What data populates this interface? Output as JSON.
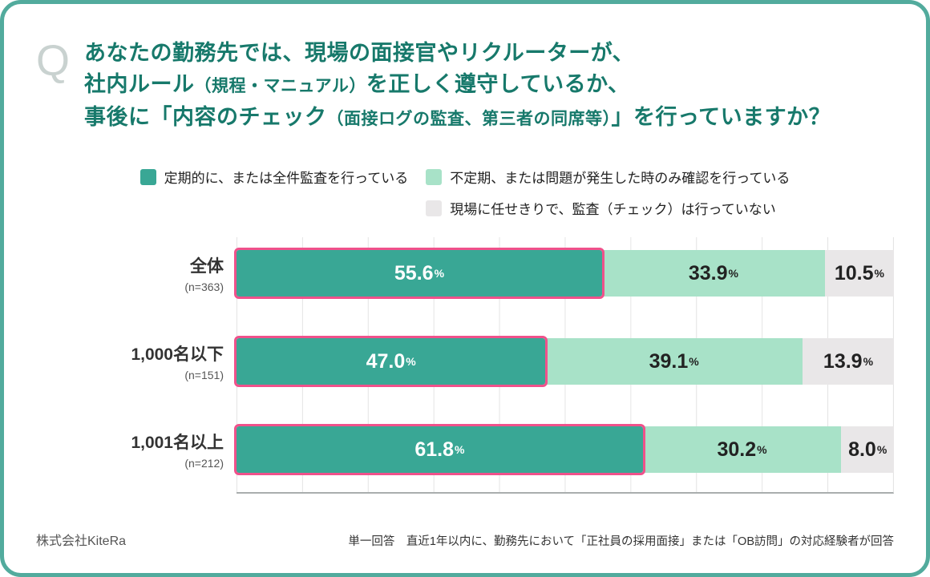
{
  "colors": {
    "frame": "#52ab9d",
    "card_bg": "#ffffff",
    "title_text": "#17796b",
    "q_icon": "#c9d2d0",
    "series1": "#39a795",
    "series2": "#a8e2c8",
    "series3": "#e9e7e8",
    "highlight_border": "#f0518b",
    "gridline": "#e4e4e4",
    "axis_line": "#a9aeae"
  },
  "question": {
    "icon": "Q",
    "lines": [
      [
        {
          "t": "あなたの勤務先では、現場の面接官やリクルーターが、"
        }
      ],
      [
        {
          "t": "社内ルール"
        },
        {
          "t": "（規程・マニュアル）",
          "small": true
        },
        {
          "t": "を正しく遵守しているか、"
        }
      ],
      [
        {
          "t": "事後に「内容のチェック"
        },
        {
          "t": "（面接ログの監査、第三者の同席等）",
          "small": true
        },
        {
          "t": "」を行っていますか？"
        }
      ]
    ]
  },
  "legend": [
    {
      "label": "定期的に、または全件監査を行っている",
      "color": "#39a795"
    },
    {
      "label": "不定期、または問題が発生した時のみ確認を行っている",
      "color": "#a8e2c8"
    },
    {
      "label": "現場に任せきりで、監査（チェック）は行っていない",
      "color": "#e9e7e8"
    }
  ],
  "chart_data": {
    "type": "bar",
    "orientation": "horizontal",
    "stacked": true,
    "title": "あなたの勤務先では、現場の面接官やリクルーターが、社内ルール（規程・マニュアル）を正しく遵守しているか、事後に「内容のチェック（面接ログの監査、第三者の同席等）」を行っていますか？",
    "categories": [
      "全体",
      "1,000名以下",
      "1,001名以上"
    ],
    "category_sub": [
      "(n=363)",
      "(n=151)",
      "(n=212)"
    ],
    "series": [
      {
        "name": "定期的に、または全件監査を行っている",
        "values": [
          55.6,
          47.0,
          61.8
        ],
        "color": "#39a795",
        "highlighted": true
      },
      {
        "name": "不定期、または問題が発生した時のみ確認を行っている",
        "values": [
          33.9,
          39.1,
          30.2
        ],
        "color": "#a8e2c8",
        "highlighted": false
      },
      {
        "name": "現場に任せきりで、監査（チェック）は行っていない",
        "values": [
          10.5,
          13.9,
          8.0
        ],
        "color": "#e9e7e8",
        "highlighted": false
      }
    ],
    "value_suffix": "%",
    "xlim": [
      0,
      100
    ],
    "x_gridline_interval": 10,
    "grid": true,
    "legend_position": "top"
  },
  "footer": {
    "company": "株式会社KiteRa",
    "note": "単一回答　直近1年以内に、勤務先において「正社員の採用面接」または「OB訪問」の対応経験者が回答"
  }
}
